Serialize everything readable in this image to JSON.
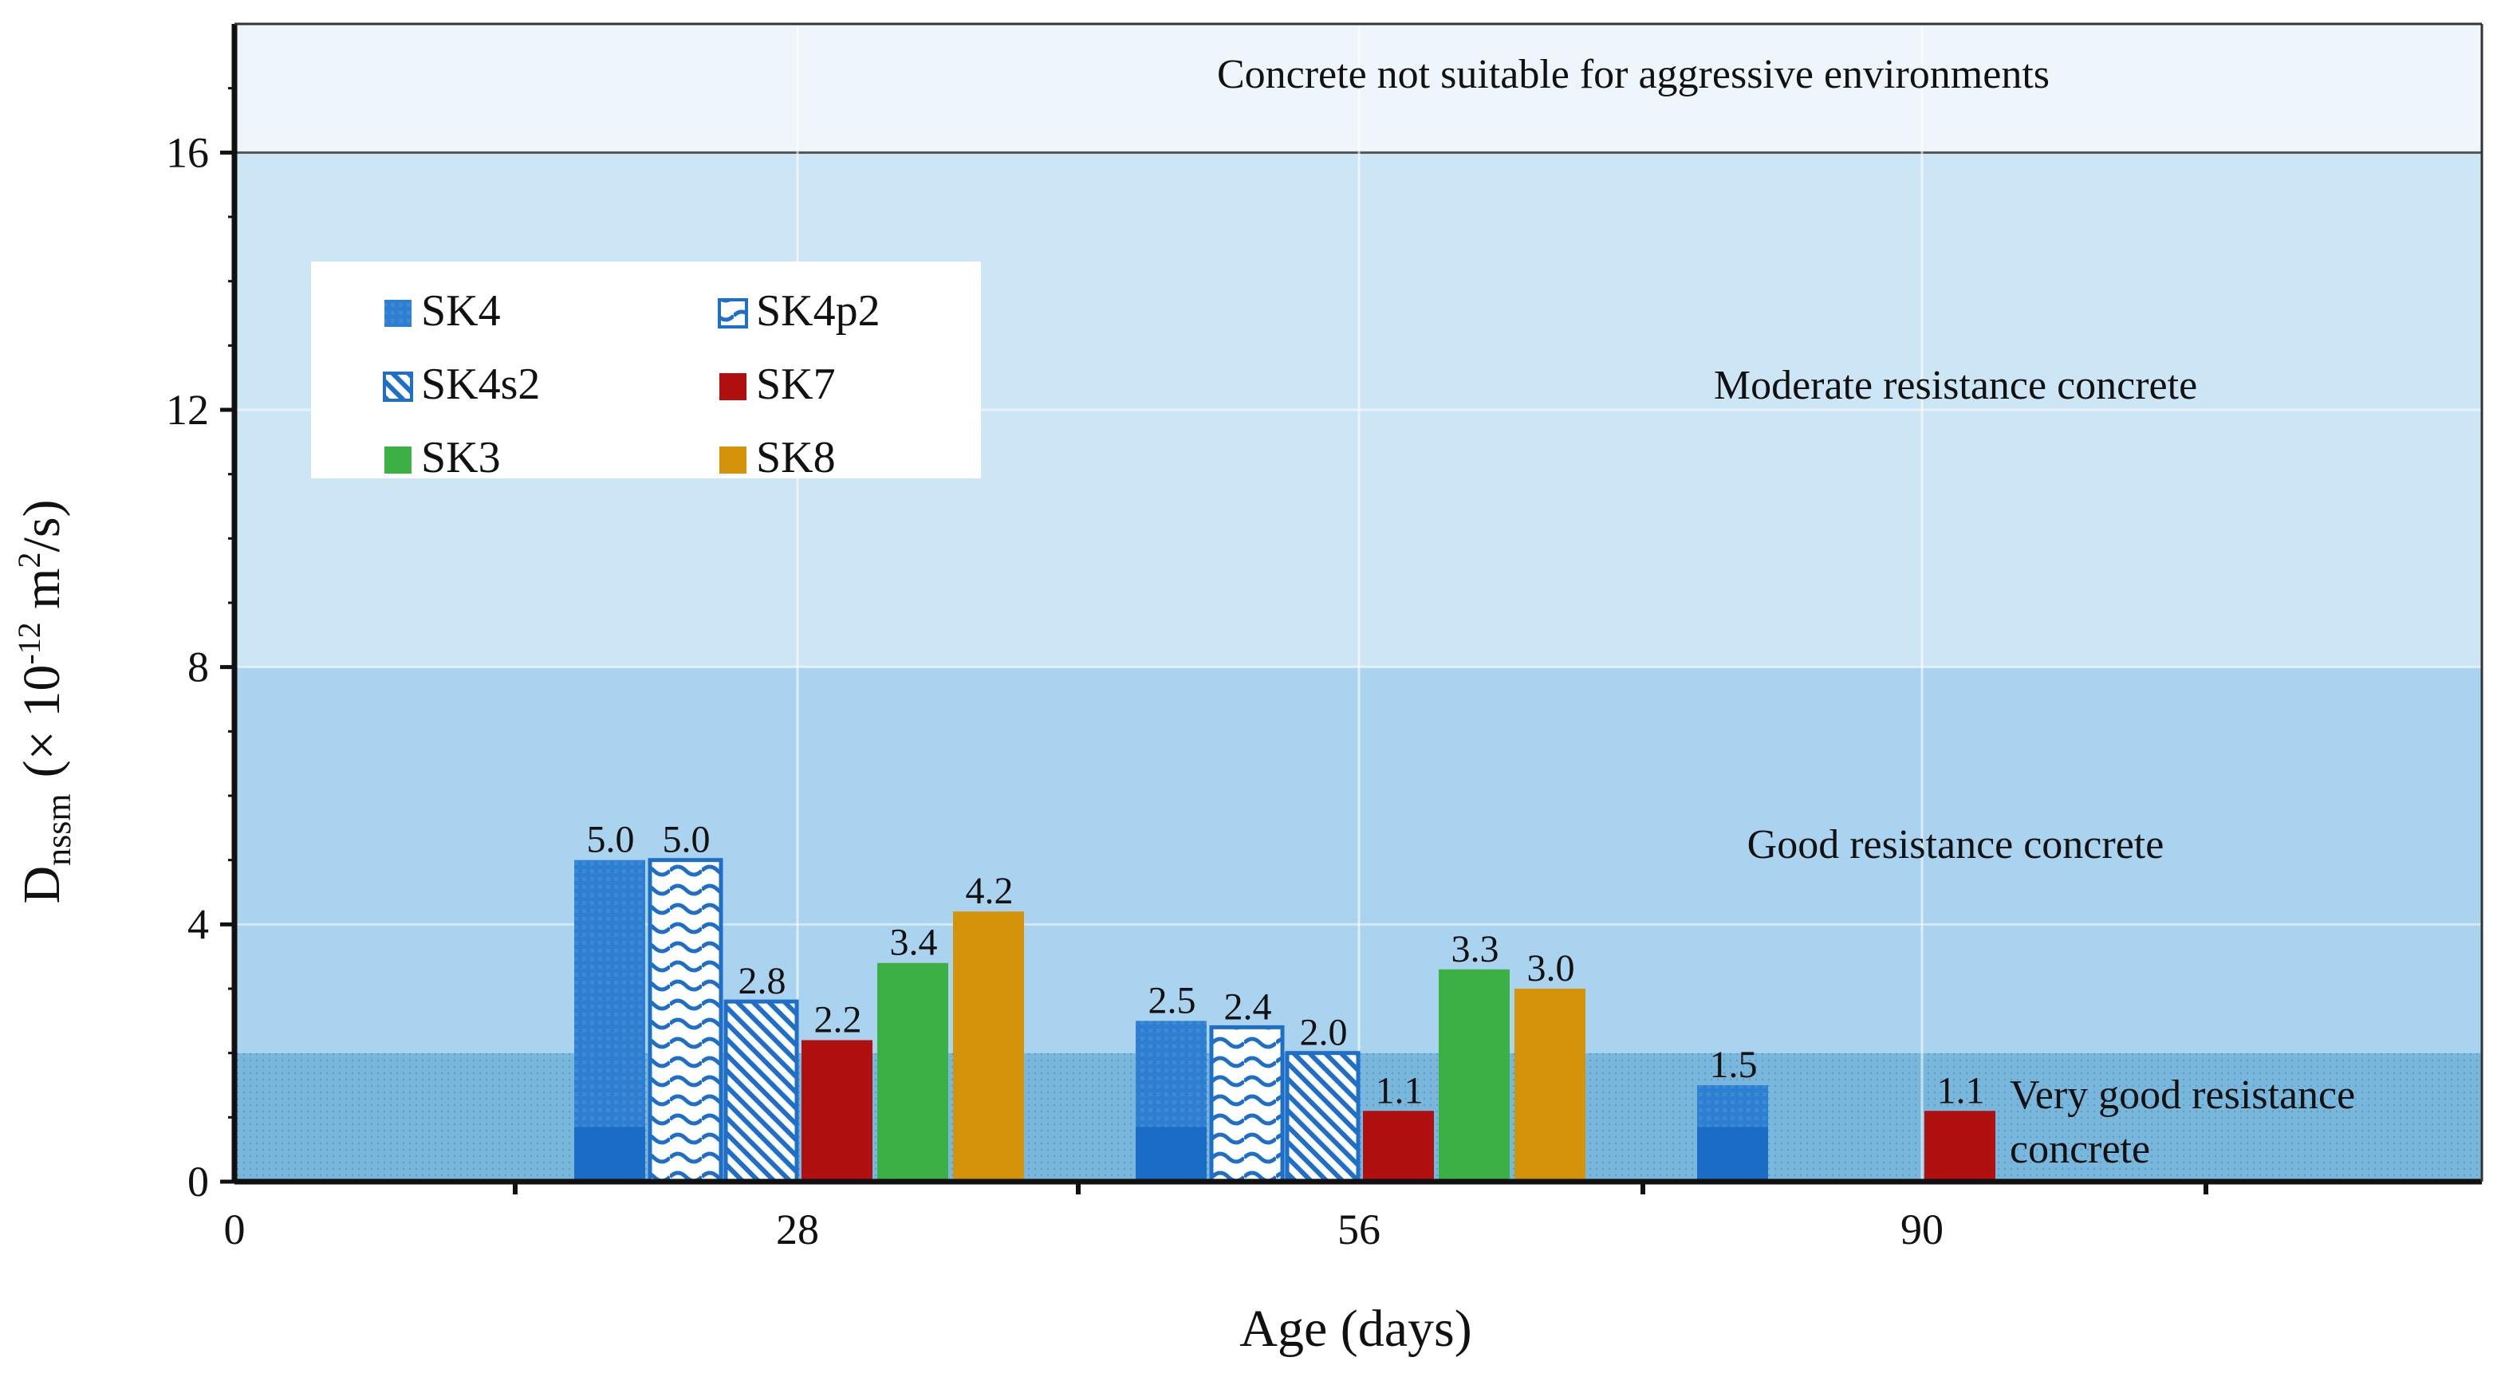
{
  "chart_data": {
    "type": "bar",
    "xlabel": "Age (days)",
    "ylabel": {
      "main": "D",
      "sub": "nssm",
      "unit_pre": "(× 10",
      "unit_exp": "-12",
      "unit_mid": " m",
      "unit_exp2": "2",
      "unit_post": "/s)"
    },
    "ylim": [
      0,
      18
    ],
    "yticks": [
      "0",
      "4",
      "8",
      "12",
      "16"
    ],
    "xticks": [
      "0",
      "28",
      "56",
      "90"
    ],
    "categories": [
      "28",
      "56",
      "90"
    ],
    "series": [
      {
        "name": "SK4",
        "values": [
          5.0,
          2.5,
          1.5
        ],
        "labels": [
          "5.0",
          "2.5",
          "1.5"
        ],
        "color": "#2e7fd1",
        "pattern": "solid-blue"
      },
      {
        "name": "SK4p2",
        "values": [
          5.0,
          2.4,
          null
        ],
        "labels": [
          "5.0",
          "2.4",
          ""
        ],
        "color": "#1f6fc8",
        "pattern": "wave"
      },
      {
        "name": "SK4s2",
        "values": [
          2.8,
          2.0,
          null
        ],
        "labels": [
          "2.8",
          "2.0",
          ""
        ],
        "color": "#1f6fc8",
        "pattern": "diagonal"
      },
      {
        "name": "SK7",
        "values": [
          2.2,
          1.1,
          1.1
        ],
        "labels": [
          "2.2",
          "1.1",
          "1.1"
        ],
        "color": "#b01010",
        "pattern": "solid"
      },
      {
        "name": "SK3",
        "values": [
          3.4,
          3.3,
          null
        ],
        "labels": [
          "3.4",
          "3.3",
          ""
        ],
        "color": "#3cb043",
        "pattern": "solid"
      },
      {
        "name": "SK8",
        "values": [
          4.2,
          3.0,
          null
        ],
        "labels": [
          "4.2",
          "3.0",
          ""
        ],
        "color": "#d4940a",
        "pattern": "solid"
      }
    ],
    "zones": [
      {
        "label": "Very good resistance",
        "label2": "concrete",
        "from": 0,
        "to": 2,
        "color": "#79b8dc"
      },
      {
        "label": "Good resistance concrete",
        "from": 2,
        "to": 8,
        "color": "#a9d3ee"
      },
      {
        "label": "Moderate resistance concrete",
        "from": 8,
        "to": 16,
        "color": "#cde6f6"
      },
      {
        "label": "Concrete not suitable for aggressive environments",
        "from": 16,
        "to": 18,
        "color": "#eef6fc"
      }
    ],
    "legend": {
      "position": "top-left",
      "columns": 2
    }
  }
}
